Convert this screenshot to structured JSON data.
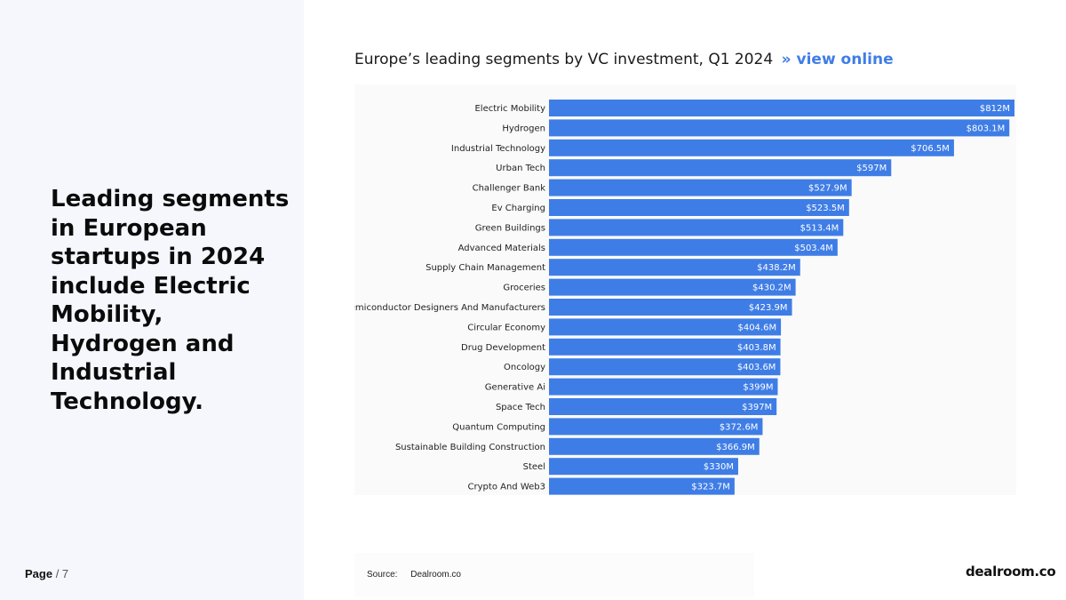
{
  "headline": "Leading segments in European startups in 2024 include Electric Mobility, Hydrogen and Industrial Technology.",
  "page": {
    "label": "Page",
    "separator": "/ 7"
  },
  "chart_header": {
    "title": "Europe’s leading segments by VC investment, Q1 2024",
    "link_arrow": "»",
    "link_label": "view online"
  },
  "source": {
    "label": "Source:",
    "value": "Dealroom.co"
  },
  "logo": {
    "text": "dealroom.co"
  },
  "colors": {
    "bar": "#3f7de6",
    "left_panel": "#f5f7fd",
    "link": "#3f7de6"
  },
  "chart_data": {
    "type": "bar",
    "orientation": "horizontal",
    "title": "Europe’s leading segments by VC investment, Q1 2024",
    "xlabel": "",
    "ylabel": "",
    "unit": "$M",
    "xlim": [
      0,
      812
    ],
    "grid": false,
    "legend": "none",
    "categories": [
      "Electric Mobility",
      "Hydrogen",
      "Industrial Technology",
      "Urban Tech",
      "Challenger Bank",
      "Ev Charging",
      "Green Buildings",
      "Advanced Materials",
      "Supply Chain Management",
      "Groceries",
      "Semiconductor Designers And Manufacturers",
      "Circular Economy",
      "Drug Development",
      "Oncology",
      "Generative Ai",
      "Space Tech",
      "Quantum Computing",
      "Sustainable Building Construction",
      "Steel",
      "Crypto And Web3"
    ],
    "values": [
      812,
      803.1,
      706.5,
      597,
      527.9,
      523.5,
      513.4,
      503.4,
      438.2,
      430.2,
      423.9,
      404.6,
      403.8,
      403.6,
      399,
      397,
      372.6,
      366.9,
      330,
      323.7
    ],
    "labels": [
      "$812M",
      "$803.1M",
      "$706.5M",
      "$597M",
      "$527.9M",
      "$523.5M",
      "$513.4M",
      "$503.4M",
      "$438.2M",
      "$430.2M",
      "$423.9M",
      "$404.6M",
      "$403.8M",
      "$403.6M",
      "$399M",
      "$397M",
      "$372.6M",
      "$366.9M",
      "$330M",
      "$323.7M"
    ]
  }
}
